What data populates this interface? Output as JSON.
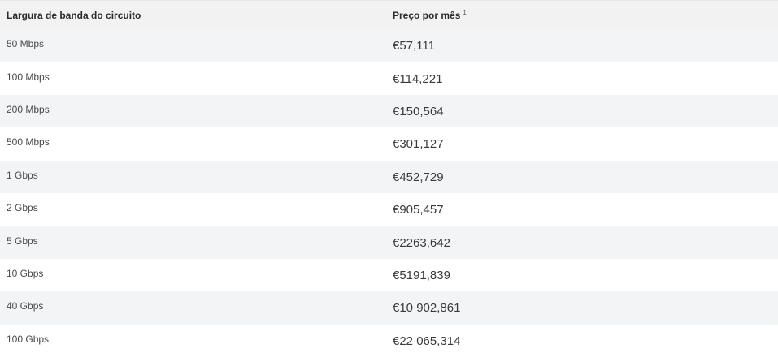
{
  "table": {
    "headers": {
      "bandwidth": "Largura de banda do circuito",
      "price": "Preço por mês",
      "price_footnote": "1"
    },
    "rows": [
      {
        "bandwidth": "50 Mbps",
        "price": "€57,111"
      },
      {
        "bandwidth": "100 Mbps",
        "price": "€114,221"
      },
      {
        "bandwidth": "200 Mbps",
        "price": "€150,564"
      },
      {
        "bandwidth": "500 Mbps",
        "price": "€301,127"
      },
      {
        "bandwidth": "1 Gbps",
        "price": "€452,729"
      },
      {
        "bandwidth": "2 Gbps",
        "price": "€905,457"
      },
      {
        "bandwidth": "5 Gbps",
        "price": "€2263,642"
      },
      {
        "bandwidth": "10 Gbps",
        "price": "€5191,839"
      },
      {
        "bandwidth": "40 Gbps",
        "price": "€10 902,861"
      },
      {
        "bandwidth": "100 Gbps",
        "price": "€22 065,314"
      }
    ]
  },
  "colors": {
    "header_bg": "#f2f2f2",
    "row_alt_bg": "#f3f4f6",
    "row_bg": "#ffffff",
    "text": "#333333"
  }
}
